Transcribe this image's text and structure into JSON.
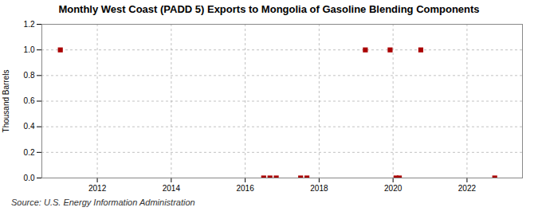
{
  "chart_data": {
    "type": "scatter",
    "title": "Monthly West Coast (PADD 5) Exports to Mongolia of Gasoline Blending Components",
    "ylabel": "Thousand Barrels",
    "annotations": [
      "Source: U.S. Energy Information Administration"
    ],
    "x": [
      2011.0,
      2016.5,
      2016.67,
      2016.84,
      2017.5,
      2017.67,
      2019.25,
      2019.92,
      2020.08,
      2020.17,
      2020.75,
      2022.75
    ],
    "values": [
      1.0,
      0.0,
      0.0,
      0.0,
      0.0,
      0.0,
      1.0,
      1.0,
      0.0,
      0.0,
      1.0,
      0.0
    ],
    "color": "#aa0000",
    "marker": "square",
    "xlim": [
      2010.5,
      2023.5
    ],
    "ylim": [
      0.0,
      1.2
    ],
    "xticks": [
      2012,
      2014,
      2016,
      2018,
      2020,
      2022
    ],
    "yticks": [
      {
        "value": 0.0,
        "label": "0.0"
      },
      0.2,
      0.4,
      0.6,
      0.8,
      {
        "value": 1.0,
        "label": "1.0"
      },
      1.2
    ],
    "grid": true
  }
}
